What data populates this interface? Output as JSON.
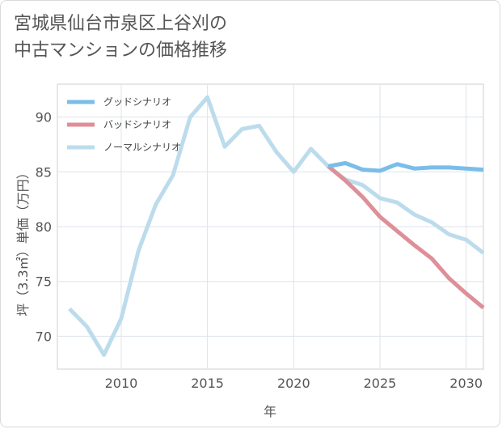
{
  "title": {
    "line1": "宮城県仙台市泉区上谷刈の",
    "line2": "中古マンションの価格推移"
  },
  "chart_data": {
    "type": "line",
    "xlabel": "年",
    "ylabel": "坪（3.3㎡）単価（万円）",
    "xlim": [
      2006.3,
      2031
    ],
    "ylim": [
      67,
      93
    ],
    "x_ticks": [
      2010,
      2015,
      2020,
      2025,
      2030
    ],
    "y_ticks": [
      70,
      75,
      80,
      85,
      90
    ],
    "grid": true,
    "legend_position": "top-left",
    "series": [
      {
        "name": "グッドシナリオ",
        "color": "#7bbde9",
        "x": [
          2022,
          2023,
          2024,
          2025,
          2026,
          2027,
          2028,
          2029,
          2030,
          2031
        ],
        "values": [
          85.5,
          85.8,
          85.2,
          85.1,
          85.7,
          85.3,
          85.4,
          85.4,
          85.3,
          85.2
        ]
      },
      {
        "name": "バッドシナリオ",
        "color": "#de8f97",
        "x": [
          2022,
          2023,
          2024,
          2025,
          2026,
          2027,
          2028,
          2029,
          2030,
          2031
        ],
        "values": [
          85.5,
          84.2,
          82.7,
          80.9,
          79.6,
          78.3,
          77.1,
          75.3,
          73.9,
          72.6
        ]
      },
      {
        "name": "ノーマルシナリオ",
        "color": "#bcdcec",
        "x": [
          2007,
          2008,
          2009,
          2010,
          2011,
          2012,
          2013,
          2014,
          2015,
          2016,
          2017,
          2018,
          2019,
          2020,
          2021,
          2022,
          2023,
          2024,
          2025,
          2026,
          2027,
          2028,
          2029,
          2030,
          2031
        ],
        "values": [
          72.5,
          70.9,
          68.3,
          71.6,
          77.8,
          82.0,
          84.7,
          90.0,
          91.8,
          87.3,
          88.9,
          89.2,
          86.8,
          85.0,
          87.1,
          85.5,
          84.3,
          83.8,
          82.6,
          82.2,
          81.1,
          80.4,
          79.3,
          78.8,
          77.6
        ]
      }
    ]
  }
}
